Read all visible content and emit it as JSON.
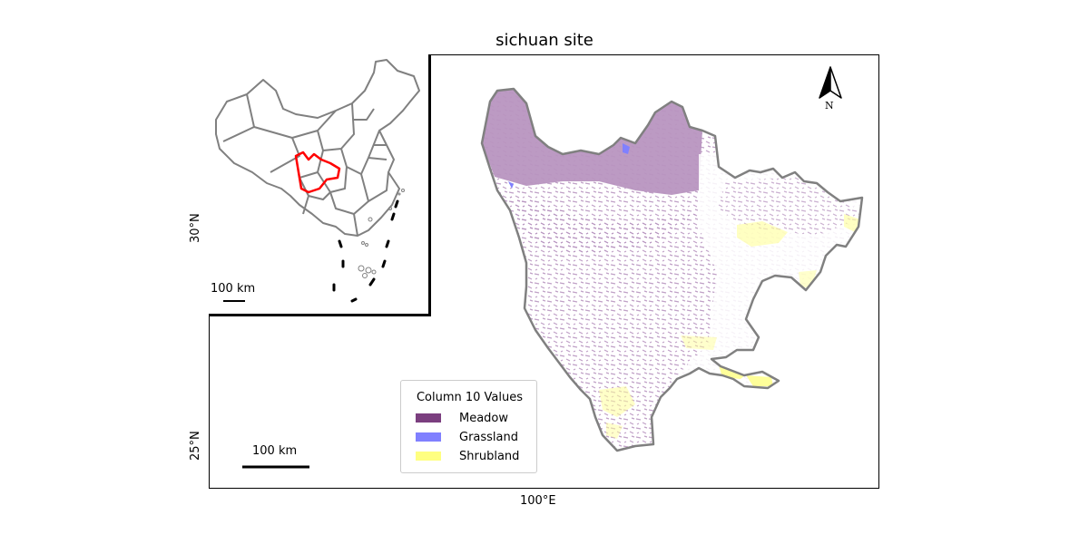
{
  "map": {
    "title": "sichuan site",
    "x_ticks": [
      {
        "label": "100°E"
      }
    ],
    "y_ticks": [
      {
        "label": "30°N"
      },
      {
        "label": "25°N"
      }
    ],
    "inset_scale_label": "100 km",
    "main_scale_label": "100 km",
    "north_label": "N",
    "legend": {
      "title": "Column 10 Values",
      "items": [
        {
          "label": "Meadow",
          "color": "#7b3f7f"
        },
        {
          "label": "Grassland",
          "color": "#8080ff"
        },
        {
          "label": "Shrubland",
          "color": "#ffff80"
        }
      ]
    },
    "colors": {
      "province_outline": "#808080",
      "highlight_outline": "#ff0000",
      "meadow_fill": "#b895c0",
      "shrubland_fill": "#ffff9a"
    }
  }
}
